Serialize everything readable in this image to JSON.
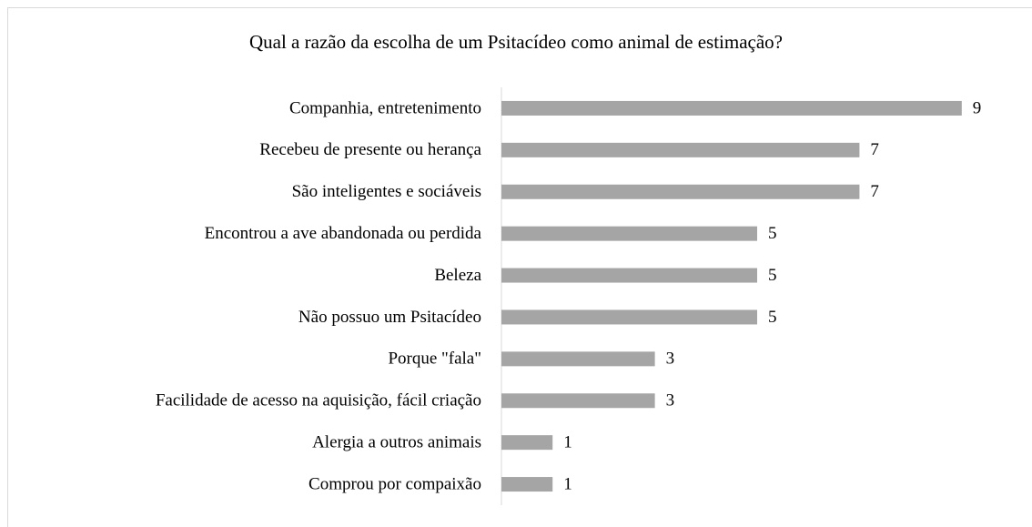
{
  "chart_data": {
    "type": "bar",
    "orientation": "horizontal",
    "title": "Qual a razão da escolha de um Psitacídeo como animal de estimação?",
    "categories": [
      "Companhia, entretenimento",
      "Recebeu de presente ou herança",
      "São inteligentes e sociáveis",
      "Encontrou a ave abandonada ou perdida",
      "Beleza",
      "Não possuo um Psitacídeo",
      "Porque \"fala\"",
      "Facilidade de acesso na aquisição, fácil criação",
      "Alergia a outros animais",
      "Comprou por compaixão"
    ],
    "values": [
      9,
      7,
      7,
      5,
      5,
      5,
      3,
      3,
      1,
      1
    ],
    "color": "#a5a5a5",
    "xlim": [
      0,
      10
    ]
  }
}
